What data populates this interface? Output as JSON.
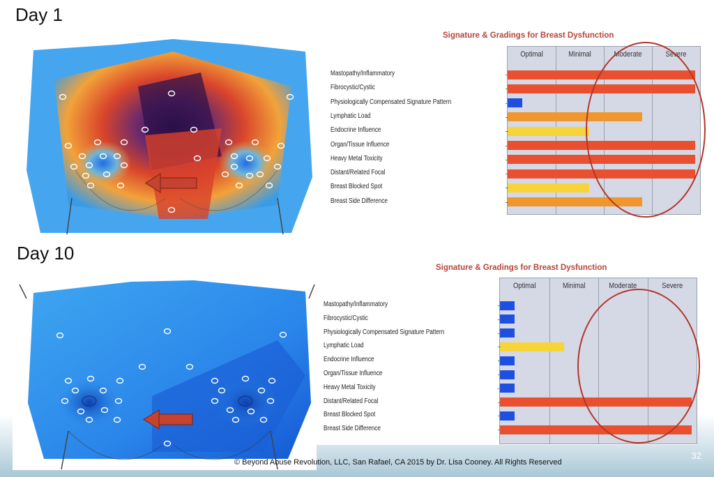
{
  "slide": {
    "footer": "© Beyond Abuse Revolution, LLC, San Rafael, CA 2015 by Dr. Lisa Cooney. All Rights Reserved",
    "page_number": "32"
  },
  "panels": [
    {
      "day_label": "Day 1"
    },
    {
      "day_label": "Day 10"
    }
  ],
  "chart_data": [
    {
      "type": "bar",
      "orientation": "horizontal",
      "title": "Signature & Gradings for Breast Dysfunction",
      "columns": [
        "Optimal",
        "Minimal",
        "Moderate",
        "Severe"
      ],
      "categories": [
        "Mastopathy/Inflammatory",
        "Fibrocystic/Cystic",
        "Physiologically Compensated Signature Pattern",
        "Lymphatic Load",
        "Endocrine Influence",
        "Organ/Tissue Influence",
        "Heavy Metal Toxicity",
        "Distant/Related Focal",
        "Breast Blocked Spot",
        "Breast Side Difference"
      ],
      "values": [
        3.9,
        3.9,
        0.3,
        2.8,
        1.7,
        3.9,
        3.9,
        3.9,
        1.7,
        2.8
      ],
      "colors": [
        "#e8502f",
        "#e8502f",
        "#1f4fe0",
        "#f0962e",
        "#f6d43a",
        "#e8502f",
        "#e8502f",
        "#e8502f",
        "#f6d43a",
        "#f0962e"
      ],
      "xlim": [
        0,
        4
      ]
    },
    {
      "type": "bar",
      "orientation": "horizontal",
      "title": "Signature & Gradings for Breast Dysfunction",
      "columns": [
        "Optimal",
        "Minimal",
        "Moderate",
        "Severe"
      ],
      "categories": [
        "Mastopathy/Inflammatory",
        "Fibrocystic/Cystic",
        "Physiologically Compensated Signature Pattern",
        "Lymphatic Load",
        "Endocrine Influence",
        "Organ/Tissue Influence",
        "Heavy Metal Toxicity",
        "Distant/Related Focal",
        "Breast Blocked Spot",
        "Breast Side Difference"
      ],
      "values": [
        0.3,
        0.3,
        0.3,
        1.3,
        0.3,
        0.3,
        0.3,
        3.9,
        0.3,
        3.9
      ],
      "colors": [
        "#1f4fe0",
        "#1f4fe0",
        "#1f4fe0",
        "#f6d43a",
        "#1f4fe0",
        "#1f4fe0",
        "#1f4fe0",
        "#e8502f",
        "#1f4fe0",
        "#e8502f"
      ],
      "xlim": [
        0,
        4
      ]
    }
  ]
}
